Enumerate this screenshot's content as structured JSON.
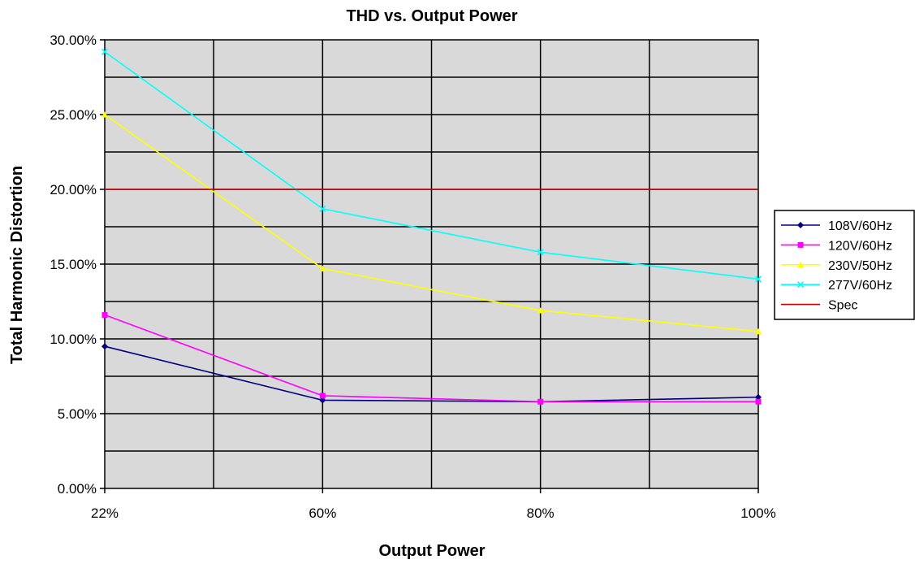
{
  "chart_data": {
    "type": "line",
    "title": "THD vs. Output Power",
    "xlabel": "Output Power",
    "ylabel": "Total Harmonic Distortion",
    "categories": [
      "22%",
      "60%",
      "80%",
      "100%"
    ],
    "ylim": [
      0,
      0.3
    ],
    "yticks": [
      0,
      0.05,
      0.1,
      0.15,
      0.2,
      0.25,
      0.3
    ],
    "ytick_labels": [
      "0.00%",
      "5.00%",
      "10.00%",
      "15.00%",
      "20.00%",
      "25.00%",
      "30.00%"
    ],
    "grid": true,
    "plot_background": "#d9d9d9",
    "legend_position": "right",
    "series": [
      {
        "name": "108V/60Hz",
        "values": [
          0.095,
          0.059,
          0.058,
          0.061
        ],
        "color": "#000080",
        "marker": "diamond"
      },
      {
        "name": "120V/60Hz",
        "values": [
          0.116,
          0.062,
          0.058,
          0.058
        ],
        "color": "#ff00ff",
        "marker": "square"
      },
      {
        "name": "230V/50Hz",
        "values": [
          0.25,
          0.147,
          0.119,
          0.105
        ],
        "color": "#ffff00",
        "marker": "triangle"
      },
      {
        "name": "277V/60Hz",
        "values": [
          0.292,
          0.187,
          0.158,
          0.14
        ],
        "color": "#00ffff",
        "marker": "x"
      },
      {
        "name": "Spec",
        "values": [
          0.2,
          0.2,
          0.2,
          0.2
        ],
        "color": "#cc0000",
        "marker": "none"
      }
    ]
  }
}
